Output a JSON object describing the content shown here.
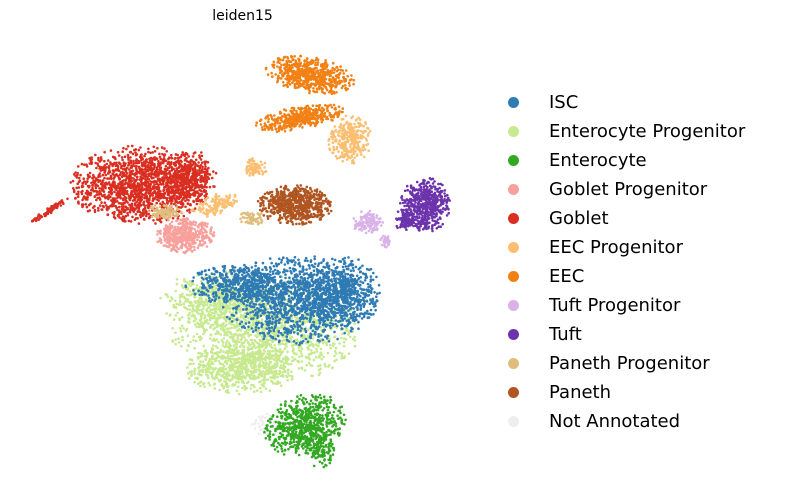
{
  "chart_data": {
    "type": "scatter",
    "title": "leiden15",
    "xlabel": "",
    "ylabel": "",
    "grid": false,
    "axes_visible": false,
    "legend_placement": "right",
    "series": [
      {
        "name": "ISC",
        "color": "#2f7bb4"
      },
      {
        "name": "Enterocyte Progenitor",
        "color": "#c7e98f"
      },
      {
        "name": "Enterocyte",
        "color": "#33a923"
      },
      {
        "name": "Goblet Progenitor",
        "color": "#f8a09b"
      },
      {
        "name": "Goblet",
        "color": "#da2e21"
      },
      {
        "name": "EEC Progenitor",
        "color": "#fcbf72"
      },
      {
        "name": "EEC",
        "color": "#f28115"
      },
      {
        "name": "Tuft Progenitor",
        "color": "#d9b2e7"
      },
      {
        "name": "Tuft",
        "color": "#6c33ac"
      },
      {
        "name": "Paneth Progenitor",
        "color": "#dfbd7d"
      },
      {
        "name": "Paneth",
        "color": "#b05521"
      },
      {
        "name": "Not Annotated",
        "color": "#eeefec"
      }
    ]
  }
}
